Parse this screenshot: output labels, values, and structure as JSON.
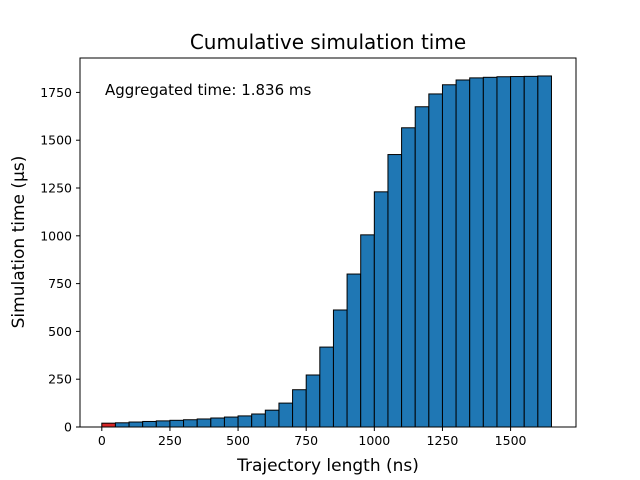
{
  "chart_data": {
    "type": "bar",
    "title": "Cumulative simulation time",
    "xlabel": "Trajectory length (ns)",
    "ylabel": "Simulation time (µs)",
    "annotation": "Aggregated time: 1.836 ms",
    "xlim": [
      -80,
      1740
    ],
    "ylim": [
      0,
      1930
    ],
    "x_ticks": [
      0,
      250,
      500,
      750,
      1000,
      1250,
      1500
    ],
    "y_ticks": [
      0,
      250,
      500,
      750,
      1000,
      1250,
      1500,
      1750
    ],
    "bin_width": 50,
    "bins": [
      {
        "x0": 0,
        "value": 20,
        "highlight": true
      },
      {
        "x0": 50,
        "value": 22,
        "highlight": false
      },
      {
        "x0": 100,
        "value": 26,
        "highlight": false
      },
      {
        "x0": 150,
        "value": 29,
        "highlight": false
      },
      {
        "x0": 200,
        "value": 32,
        "highlight": false
      },
      {
        "x0": 250,
        "value": 35,
        "highlight": false
      },
      {
        "x0": 300,
        "value": 38,
        "highlight": false
      },
      {
        "x0": 350,
        "value": 42,
        "highlight": false
      },
      {
        "x0": 400,
        "value": 47,
        "highlight": false
      },
      {
        "x0": 450,
        "value": 52,
        "highlight": false
      },
      {
        "x0": 500,
        "value": 58,
        "highlight": false
      },
      {
        "x0": 550,
        "value": 68,
        "highlight": false
      },
      {
        "x0": 600,
        "value": 88,
        "highlight": false
      },
      {
        "x0": 650,
        "value": 125,
        "highlight": false
      },
      {
        "x0": 700,
        "value": 195,
        "highlight": false
      },
      {
        "x0": 750,
        "value": 272,
        "highlight": false
      },
      {
        "x0": 800,
        "value": 418,
        "highlight": false
      },
      {
        "x0": 850,
        "value": 612,
        "highlight": false
      },
      {
        "x0": 900,
        "value": 800,
        "highlight": false
      },
      {
        "x0": 950,
        "value": 1005,
        "highlight": false
      },
      {
        "x0": 1000,
        "value": 1230,
        "highlight": false
      },
      {
        "x0": 1050,
        "value": 1425,
        "highlight": false
      },
      {
        "x0": 1100,
        "value": 1565,
        "highlight": false
      },
      {
        "x0": 1150,
        "value": 1675,
        "highlight": false
      },
      {
        "x0": 1200,
        "value": 1742,
        "highlight": false
      },
      {
        "x0": 1250,
        "value": 1790,
        "highlight": false
      },
      {
        "x0": 1300,
        "value": 1815,
        "highlight": false
      },
      {
        "x0": 1350,
        "value": 1826,
        "highlight": false
      },
      {
        "x0": 1400,
        "value": 1829,
        "highlight": false
      },
      {
        "x0": 1450,
        "value": 1832,
        "highlight": false
      },
      {
        "x0": 1500,
        "value": 1833,
        "highlight": false
      },
      {
        "x0": 1550,
        "value": 1834,
        "highlight": false
      },
      {
        "x0": 1600,
        "value": 1836,
        "highlight": false
      }
    ],
    "colors": {
      "bar": "#1f77b4",
      "highlight": "#d62728",
      "edge": "#000000"
    }
  }
}
